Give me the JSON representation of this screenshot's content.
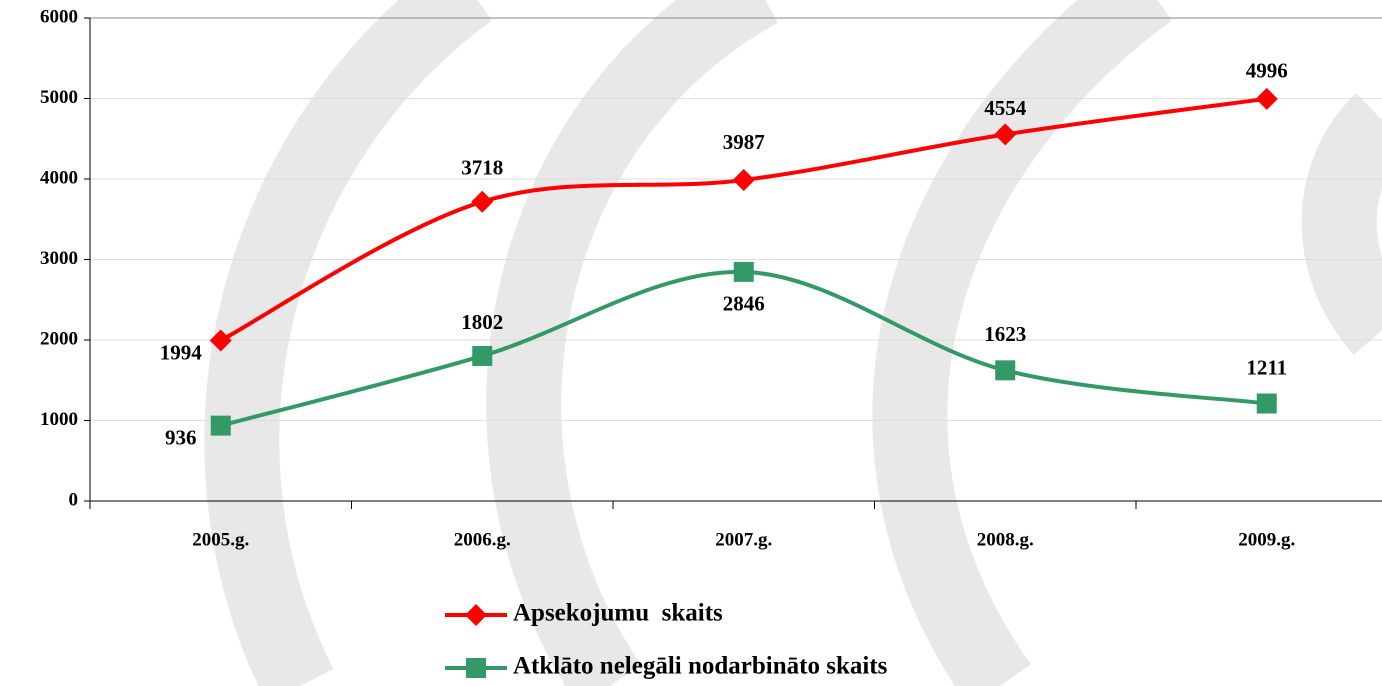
{
  "chart_data": {
    "type": "line",
    "categories": [
      "2005.g.",
      "2006.g.",
      "2007.g.",
      "2008.g.",
      "2009.g."
    ],
    "series": [
      {
        "name": "Apsekojumu  skaits",
        "color": "#ff0000",
        "marker": "diamond",
        "values": [
          1994,
          3718,
          3987,
          4554,
          4996
        ]
      },
      {
        "name": "Atklāto nelegāli nodarbināto skaits",
        "color": "#339966",
        "marker": "square",
        "values": [
          936,
          1802,
          2846,
          1623,
          1211
        ]
      }
    ],
    "ylim": [
      0,
      6000
    ],
    "yticks": [
      0,
      1000,
      2000,
      3000,
      4000,
      5000,
      6000
    ],
    "grid": true,
    "smooth": true,
    "legend": "bottom"
  }
}
